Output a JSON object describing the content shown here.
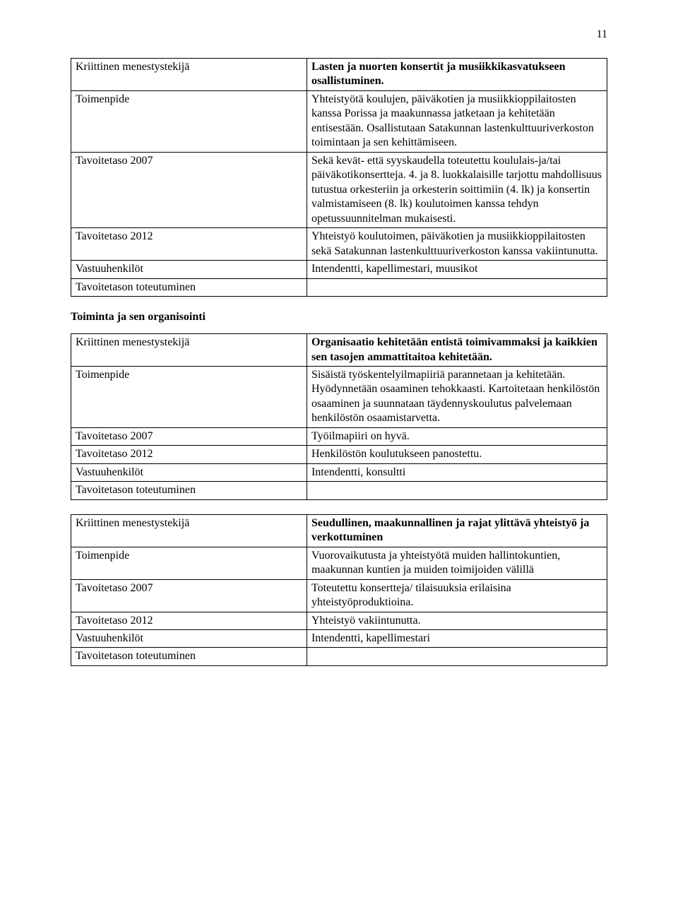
{
  "page_number": "11",
  "tables": [
    {
      "rows": [
        {
          "label": "Kriittinen menestystekijä",
          "label_bold": false,
          "value": "Lasten ja nuorten konsertit ja musiikkikasvatukseen osallistuminen.",
          "value_bold": true
        },
        {
          "label": "Toimenpide",
          "label_bold": false,
          "value": "Yhteistyötä koulujen, päiväkotien ja musiikkioppilaitosten  kanssa Porissa ja maakunnassa jatketaan ja kehitetään entisestään. Osallistutaan Satakunnan lastenkulttuuriverkoston toimintaan ja sen kehittämiseen.",
          "value_bold": false
        },
        {
          "label": "Tavoitetaso 2007",
          "label_bold": false,
          "value": "Sekä kevät- että syyskaudella toteutettu koululais-ja/tai päiväkotikonsertteja. 4. ja 8. luokkalaisille tarjottu mahdollisuus tutustua orkesteriin ja orkesterin soittimiin (4. lk) ja konsertin valmistamiseen (8. lk) koulutoimen kanssa tehdyn opetussuunnitelman mukaisesti.",
          "value_bold": false
        },
        {
          "label": "Tavoitetaso 2012",
          "label_bold": false,
          "value": "Yhteistyö koulutoimen, päiväkotien ja musiikkioppilaitosten sekä Satakunnan lastenkulttuuriverkoston kanssa  vakiintunutta.",
          "value_bold": false
        },
        {
          "label": "Vastuuhenkilöt",
          "label_bold": false,
          "value": "Intendentti, kapellimestari, muusikot",
          "value_bold": false
        },
        {
          "label": "Tavoitetason toteutuminen",
          "label_bold": false,
          "value": "",
          "value_bold": false
        }
      ]
    },
    {
      "rows": [
        {
          "label": "Kriittinen menestystekijä",
          "label_bold": false,
          "value": "Organisaatio kehitetään entistä toimivammaksi ja kaikkien sen tasojen ammattitaitoa kehitetään.",
          "value_bold": true
        },
        {
          "label": "Toimenpide",
          "label_bold": false,
          "value": "Sisäistä työskentelyilmapiiriä parannetaan ja kehitetään. Hyödynnetään osaaminen tehokkaasti. Kartoitetaan henkilöstön osaaminen ja suunnataan täydennyskoulutus palvelemaan henkilöstön osaamistarvetta.",
          "value_bold": false
        },
        {
          "label": "Tavoitetaso 2007",
          "label_bold": false,
          "value": "Työilmapiiri on hyvä.",
          "value_bold": false
        },
        {
          "label": "Tavoitetaso 2012",
          "label_bold": false,
          "value": "Henkilöstön koulutukseen panostettu.",
          "value_bold": false
        },
        {
          "label": "Vastuuhenkilöt",
          "label_bold": false,
          "value": "Intendentti, konsultti",
          "value_bold": false
        },
        {
          "label": "Tavoitetason toteutuminen",
          "label_bold": false,
          "value": "",
          "value_bold": false
        }
      ]
    },
    {
      "rows": [
        {
          "label": "Kriittinen menestystekijä",
          "label_bold": false,
          "value": "Seudullinen, maakunnallinen ja rajat ylittävä yhteistyö ja verkottuminen",
          "value_bold": true
        },
        {
          "label": "Toimenpide",
          "label_bold": false,
          "value": "Vuorovaikutusta ja yhteistyötä muiden hallintokuntien,  maakunnan kuntien  ja muiden toimijoiden välillä",
          "value_bold": false
        },
        {
          "label": "Tavoitetaso 2007",
          "label_bold": false,
          "value": "Toteutettu konsertteja/ tilaisuuksia erilaisina yhteistyöproduktioina.",
          "value_bold": false
        },
        {
          "label": "Tavoitetaso 2012",
          "label_bold": false,
          "value": "Yhteistyö vakiintunutta.",
          "value_bold": false
        },
        {
          "label": "Vastuuhenkilöt",
          "label_bold": false,
          "value": "Intendentti, kapellimestari",
          "value_bold": false
        },
        {
          "label": "Tavoitetason toteutuminen",
          "label_bold": false,
          "value": "",
          "value_bold": false
        }
      ]
    }
  ],
  "section_heading": "Toiminta ja sen organisointi"
}
